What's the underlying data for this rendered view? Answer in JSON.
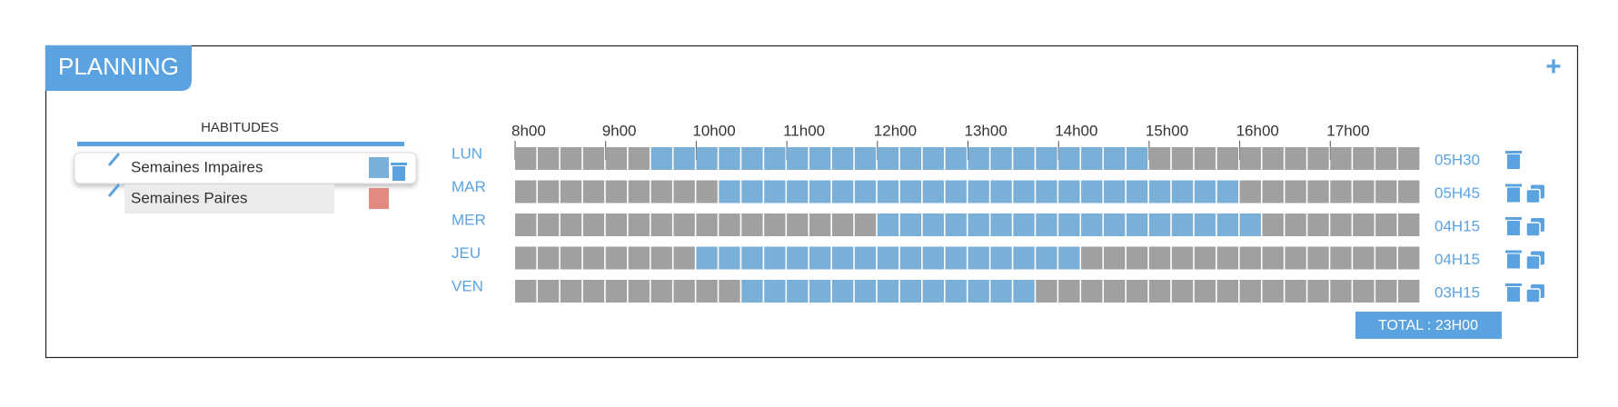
{
  "header": {
    "title": "PLANNING",
    "add": "+"
  },
  "habits": {
    "title": "HABITUDES",
    "items": [
      {
        "label": "Semaines Impaires",
        "color": "#7aafd8"
      },
      {
        "label": "Semaines Paires",
        "color": "#e08a80"
      }
    ]
  },
  "schedule": {
    "hours": [
      "8h00",
      "9h00",
      "10h00",
      "11h00",
      "12h00",
      "13h00",
      "14h00",
      "15h00",
      "16h00",
      "17h00"
    ],
    "days": [
      {
        "label": "LUN",
        "start": 6,
        "end": 28,
        "total": "05H30"
      },
      {
        "label": "MAR",
        "start": 9,
        "end": 32,
        "total": "05H45"
      },
      {
        "label": "MER",
        "start": 16,
        "end": 33,
        "total": "04H15"
      },
      {
        "label": "JEU",
        "start": 8,
        "end": 25,
        "total": "04H15"
      },
      {
        "label": "VEN",
        "start": 10,
        "end": 23,
        "total": "03H15"
      }
    ],
    "total": "TOTAL : 23H00"
  }
}
